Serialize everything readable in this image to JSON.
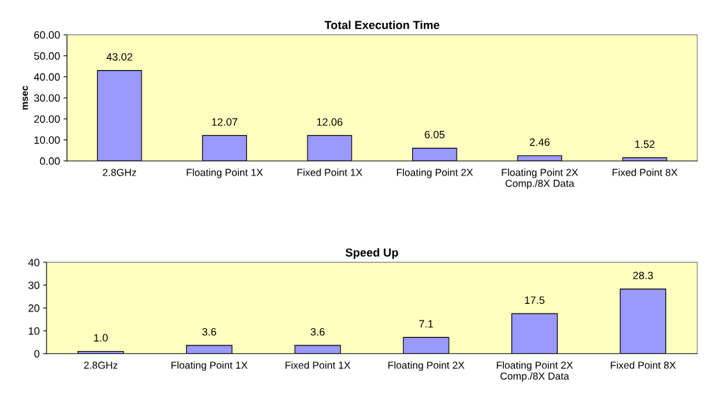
{
  "chart_data": [
    {
      "type": "bar",
      "title": "Total Execution Time",
      "ylabel": "msec",
      "categories": [
        "2.8GHz",
        "Floating Point 1X",
        "Fixed Point 1X",
        "Floating Point 2X",
        "Floating Point 2X\nComp./8X Data",
        "Fixed Point 8X"
      ],
      "values": [
        43.02,
        12.07,
        12.06,
        6.05,
        2.46,
        1.52
      ],
      "value_labels": [
        "43.02",
        "12.07",
        "12.06",
        "6.05",
        "2.46",
        "1.52"
      ],
      "color": "#9999ff",
      "ylim": [
        0,
        60
      ],
      "yticks": [
        {
          "value": 0,
          "label": "0.00"
        },
        {
          "value": 10,
          "label": "10.00"
        },
        {
          "value": 20,
          "label": "20.00"
        },
        {
          "value": 30,
          "label": "30.00"
        },
        {
          "value": 40,
          "label": "40.00"
        },
        {
          "value": 50,
          "label": "50.00"
        },
        {
          "value": 60,
          "label": "60.00"
        }
      ],
      "grid": false,
      "legend": false
    },
    {
      "type": "bar",
      "title": "Speed Up",
      "categories": [
        "2.8GHz",
        "Floating Point 1X",
        "Fixed Point 1X",
        "Floating Point 2X",
        "Floating Point 2X\nComp./8X Data",
        "Fixed Point 8X"
      ],
      "values": [
        1.0,
        3.6,
        3.6,
        7.1,
        17.5,
        28.3
      ],
      "value_labels": [
        "1.0",
        "3.6",
        "3.6",
        "7.1",
        "17.5",
        "28.3"
      ],
      "color": "#9999ff",
      "ylim": [
        0,
        40
      ],
      "yticks": [
        0,
        10,
        20,
        30,
        40
      ],
      "grid": false,
      "legend": false
    }
  ]
}
